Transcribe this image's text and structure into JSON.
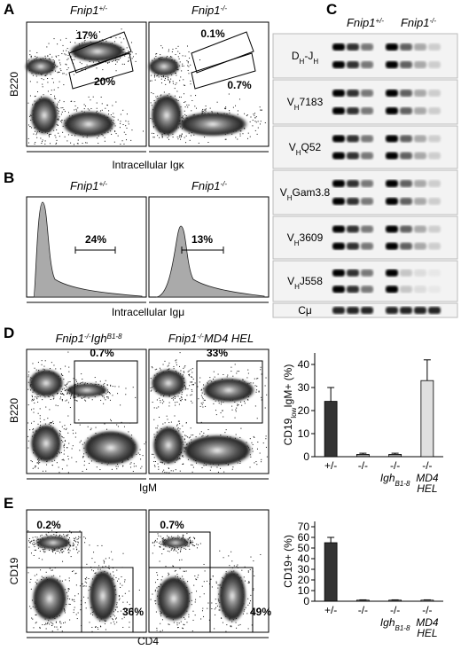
{
  "panels": {
    "A": {
      "letter": "A",
      "headers": [
        [
          "Fnip1",
          {
            "sup": "+/-"
          }
        ],
        [
          "Fnip1",
          {
            "sup": "-/-"
          }
        ]
      ],
      "gates": [
        "17%",
        "20%",
        "0.1%",
        "0.7%"
      ],
      "ylabel": "B220",
      "xlabel": "Intracellular Igκ"
    },
    "B": {
      "letter": "B",
      "headers": [
        [
          "Fnip1",
          {
            "sup": "+/-"
          }
        ],
        [
          "Fnip1",
          {
            "sup": "-/-"
          }
        ]
      ],
      "gates": [
        "24%",
        "13%"
      ],
      "xlabel": "Intracellular Igμ"
    },
    "C": {
      "letter": "C",
      "headers": [
        [
          "Fnip1",
          {
            "sup": "+/-"
          }
        ],
        [
          "Fnip1",
          {
            "sup": "-/-"
          }
        ]
      ],
      "rows": [
        [
          "D",
          {
            "sub": "H"
          },
          "-J",
          {
            "sub": "H"
          }
        ],
        [
          "V",
          {
            "sub": "H"
          },
          "7183"
        ],
        [
          "V",
          {
            "sub": "H"
          },
          "Q52"
        ],
        [
          "V",
          {
            "sub": "H"
          },
          "Gam3.8"
        ],
        [
          "V",
          {
            "sub": "H"
          },
          "3609"
        ],
        [
          "V",
          {
            "sub": "H"
          },
          "J558"
        ],
        [
          "Cμ"
        ]
      ]
    },
    "D": {
      "letter": "D",
      "headers": [
        [
          "Fnip1",
          {
            "sup": "-/-"
          },
          "Igh",
          {
            "sup": "B1-8"
          }
        ],
        [
          "Fnip1",
          {
            "sup": "-/-"
          },
          "MD4 HEL"
        ]
      ],
      "gates": [
        "0.7%",
        "33%"
      ],
      "ylabel": "B220",
      "xlabel": "IgM"
    },
    "E": {
      "letter": "E",
      "gates": [
        "0.2%",
        "36%",
        "0.7%",
        "49%"
      ],
      "ylabel": "CD19",
      "xlabel": "CD4"
    }
  },
  "chart_data": [
    {
      "type": "bar",
      "ylabel": [
        "CD19",
        {
          "sub": "low"
        },
        "IgM+ (%)"
      ],
      "categories": [
        "+/-",
        "-/-",
        "-/-",
        "-/-"
      ],
      "category_notes": [
        null,
        null,
        [
          [
            "Igh",
            {
              "sub": "B1-8"
            }
          ]
        ],
        [
          [
            "MD4"
          ],
          [
            "HEL"
          ]
        ]
      ],
      "values": [
        24,
        1,
        1,
        33
      ],
      "errors": [
        6,
        0.5,
        0.5,
        9
      ],
      "colors": [
        "#333333",
        "#999999",
        "#999999",
        "#e0e0e0"
      ],
      "ylim": [
        0,
        45
      ],
      "yticks": [
        0,
        10,
        20,
        30,
        40
      ]
    },
    {
      "type": "bar",
      "ylabel": [
        "CD19+ (%)"
      ],
      "categories": [
        "+/-",
        "-/-",
        "-/-",
        "-/-"
      ],
      "category_notes": [
        null,
        null,
        [
          [
            "Igh",
            {
              "sub": "B1-8"
            }
          ]
        ],
        [
          [
            "MD4"
          ],
          [
            "HEL"
          ]
        ]
      ],
      "values": [
        55,
        1,
        1,
        1
      ],
      "errors": [
        5,
        0.3,
        0.3,
        0.3
      ],
      "colors": [
        "#333333",
        "#999999",
        "#999999",
        "#e0e0e0"
      ],
      "ylim": [
        0,
        75
      ],
      "yticks": [
        0,
        10,
        20,
        30,
        40,
        50,
        60,
        70
      ]
    }
  ]
}
